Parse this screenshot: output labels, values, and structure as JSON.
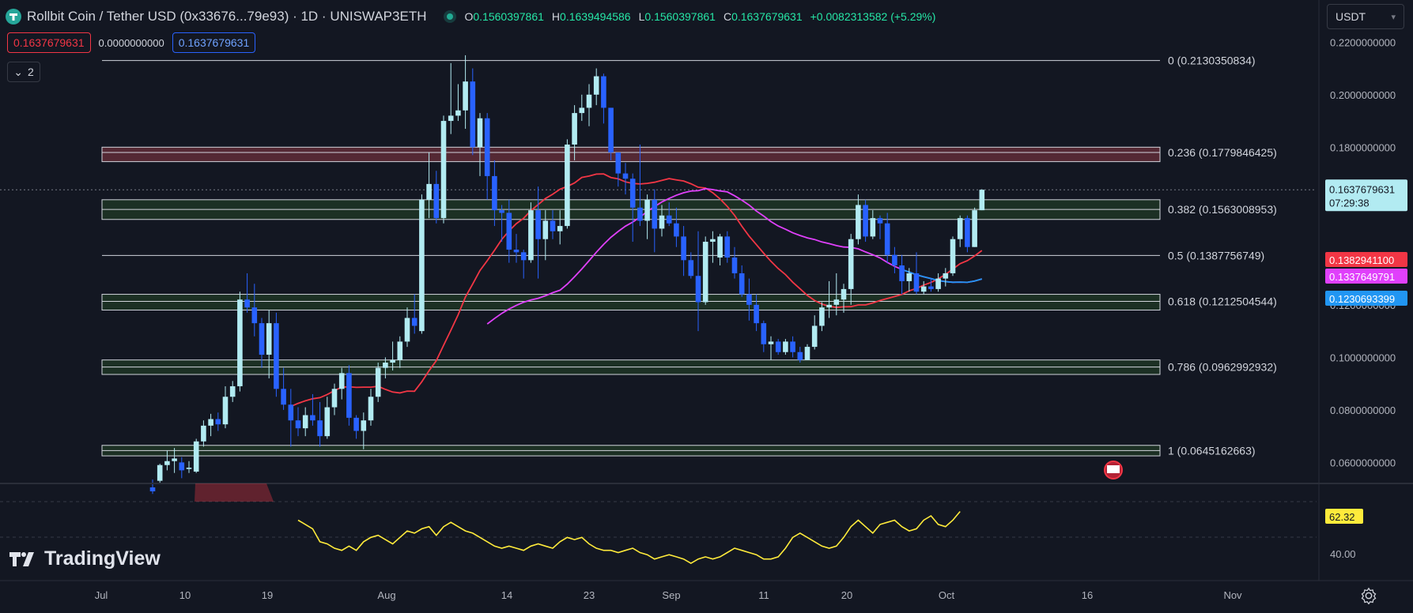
{
  "header": {
    "symbol_title": "Rollbit Coin / Tether USD (0x33676...79e93) · 1D · UNISWAP3ETH",
    "ohlc": [
      {
        "key": "O",
        "value": "0.1560397861"
      },
      {
        "key": "H",
        "value": "0.1639494586"
      },
      {
        "key": "L",
        "value": "0.1560397861"
      },
      {
        "key": "C",
        "value": "0.1637679631"
      },
      {
        "key": "",
        "value": "+0.0082313582 (+5.29%)"
      }
    ],
    "sell_price": "0.1637679631",
    "spread": "0.0000000000",
    "buy_price": "0.1637679631",
    "indicator_count": "2",
    "currency_select": "USDT"
  },
  "price_axis": {
    "ticks": [
      "0.2200000000",
      "0.2000000000",
      "0.1800000000",
      "0.1200000000",
      "0.1000000000",
      "0.0800000000",
      "0.0600000000"
    ],
    "last_price": "0.1637679631",
    "countdown": "07:29:38",
    "ma_labels": [
      {
        "value": "0.1382941100",
        "color": "#f23645"
      },
      {
        "value": "0.1337649791",
        "color": "#e040fb"
      },
      {
        "value": "0.1230693399",
        "color": "#2196f3"
      }
    ]
  },
  "fib_levels": [
    {
      "label": "0 (0.2130350834)"
    },
    {
      "label": "0.236 (0.1779846425)"
    },
    {
      "label": "0.382 (0.1563008953)"
    },
    {
      "label": "0.5 (0.1387756749)"
    },
    {
      "label": "0.618 (0.1212504544)"
    },
    {
      "label": "0.786 (0.0962992932)"
    },
    {
      "label": "1 (0.0645162663)"
    }
  ],
  "rsi": {
    "value_label": "62.32",
    "tick": "40.00"
  },
  "time_axis": [
    "Jul",
    "10",
    "19",
    "Aug",
    "14",
    "23",
    "Sep",
    "11",
    "20",
    "Oct",
    "16",
    "Nov"
  ],
  "branding": {
    "name": "TradingView"
  },
  "colors": {
    "background": "#131722",
    "up": "#b2ebf2",
    "down": "#2962ff",
    "ma_fast": "#f23645",
    "ma_mid": "#e040fb",
    "ma_slow": "#2196f3",
    "rsi": "#ffeb3b",
    "grid": "#2a2e39"
  },
  "chart_data": {
    "type": "candlestick",
    "series_note": "",
    "candles": [
      {
        "o": 0.0505,
        "h": 0.0535,
        "l": 0.048,
        "c": 0.049
      },
      {
        "o": 0.053,
        "h": 0.0595,
        "l": 0.052,
        "c": 0.059
      },
      {
        "o": 0.059,
        "h": 0.0645,
        "l": 0.057,
        "c": 0.0605
      },
      {
        "o": 0.0605,
        "h": 0.0655,
        "l": 0.056,
        "c": 0.0615
      },
      {
        "o": 0.06,
        "h": 0.062,
        "l": 0.054,
        "c": 0.057
      },
      {
        "o": 0.0575,
        "h": 0.0605,
        "l": 0.056,
        "c": 0.058
      },
      {
        "o": 0.0565,
        "h": 0.069,
        "l": 0.056,
        "c": 0.068
      },
      {
        "o": 0.068,
        "h": 0.076,
        "l": 0.066,
        "c": 0.074
      },
      {
        "o": 0.074,
        "h": 0.0785,
        "l": 0.07,
        "c": 0.0765
      },
      {
        "o": 0.0765,
        "h": 0.079,
        "l": 0.072,
        "c": 0.0745
      },
      {
        "o": 0.0745,
        "h": 0.089,
        "l": 0.073,
        "c": 0.085
      },
      {
        "o": 0.085,
        "h": 0.091,
        "l": 0.083,
        "c": 0.089
      },
      {
        "o": 0.089,
        "h": 0.125,
        "l": 0.087,
        "c": 0.122
      },
      {
        "o": 0.122,
        "h": 0.132,
        "l": 0.117,
        "c": 0.119
      },
      {
        "o": 0.119,
        "h": 0.128,
        "l": 0.108,
        "c": 0.113
      },
      {
        "o": 0.113,
        "h": 0.115,
        "l": 0.096,
        "c": 0.101
      },
      {
        "o": 0.101,
        "h": 0.118,
        "l": 0.092,
        "c": 0.113
      },
      {
        "o": 0.113,
        "h": 0.117,
        "l": 0.085,
        "c": 0.088
      },
      {
        "o": 0.088,
        "h": 0.096,
        "l": 0.08,
        "c": 0.082
      },
      {
        "o": 0.082,
        "h": 0.088,
        "l": 0.066,
        "c": 0.076
      },
      {
        "o": 0.076,
        "h": 0.081,
        "l": 0.07,
        "c": 0.073
      },
      {
        "o": 0.073,
        "h": 0.081,
        "l": 0.07,
        "c": 0.078
      },
      {
        "o": 0.078,
        "h": 0.086,
        "l": 0.074,
        "c": 0.076
      },
      {
        "o": 0.076,
        "h": 0.083,
        "l": 0.066,
        "c": 0.07
      },
      {
        "o": 0.07,
        "h": 0.085,
        "l": 0.069,
        "c": 0.081
      },
      {
        "o": 0.081,
        "h": 0.09,
        "l": 0.078,
        "c": 0.088
      },
      {
        "o": 0.088,
        "h": 0.096,
        "l": 0.084,
        "c": 0.094
      },
      {
        "o": 0.094,
        "h": 0.097,
        "l": 0.074,
        "c": 0.077
      },
      {
        "o": 0.077,
        "h": 0.078,
        "l": 0.069,
        "c": 0.072
      },
      {
        "o": 0.072,
        "h": 0.079,
        "l": 0.065,
        "c": 0.076
      },
      {
        "o": 0.076,
        "h": 0.088,
        "l": 0.074,
        "c": 0.085
      },
      {
        "o": 0.085,
        "h": 0.098,
        "l": 0.083,
        "c": 0.096
      },
      {
        "o": 0.096,
        "h": 0.1,
        "l": 0.092,
        "c": 0.098
      },
      {
        "o": 0.098,
        "h": 0.106,
        "l": 0.095,
        "c": 0.099
      },
      {
        "o": 0.099,
        "h": 0.108,
        "l": 0.096,
        "c": 0.106
      },
      {
        "o": 0.106,
        "h": 0.119,
        "l": 0.104,
        "c": 0.115
      },
      {
        "o": 0.115,
        "h": 0.124,
        "l": 0.109,
        "c": 0.112
      },
      {
        "o": 0.11,
        "h": 0.162,
        "l": 0.109,
        "c": 0.16
      },
      {
        "o": 0.16,
        "h": 0.178,
        "l": 0.153,
        "c": 0.166
      },
      {
        "o": 0.166,
        "h": 0.171,
        "l": 0.151,
        "c": 0.153
      },
      {
        "o": 0.153,
        "h": 0.192,
        "l": 0.151,
        "c": 0.19
      },
      {
        "o": 0.19,
        "h": 0.212,
        "l": 0.185,
        "c": 0.192
      },
      {
        "o": 0.192,
        "h": 0.204,
        "l": 0.19,
        "c": 0.194
      },
      {
        "o": 0.194,
        "h": 0.215,
        "l": 0.187,
        "c": 0.205
      },
      {
        "o": 0.205,
        "h": 0.21,
        "l": 0.177,
        "c": 0.18
      },
      {
        "o": 0.18,
        "h": 0.193,
        "l": 0.169,
        "c": 0.191
      },
      {
        "o": 0.191,
        "h": 0.193,
        "l": 0.16,
        "c": 0.169
      },
      {
        "o": 0.169,
        "h": 0.175,
        "l": 0.15,
        "c": 0.156
      },
      {
        "o": 0.156,
        "h": 0.158,
        "l": 0.144,
        "c": 0.155
      },
      {
        "o": 0.155,
        "h": 0.16,
        "l": 0.136,
        "c": 0.141
      },
      {
        "o": 0.141,
        "h": 0.147,
        "l": 0.136,
        "c": 0.14
      },
      {
        "o": 0.14,
        "h": 0.141,
        "l": 0.13,
        "c": 0.137
      },
      {
        "o": 0.137,
        "h": 0.159,
        "l": 0.136,
        "c": 0.156
      },
      {
        "o": 0.156,
        "h": 0.165,
        "l": 0.13,
        "c": 0.145
      },
      {
        "o": 0.145,
        "h": 0.156,
        "l": 0.137,
        "c": 0.152
      },
      {
        "o": 0.152,
        "h": 0.156,
        "l": 0.145,
        "c": 0.148
      },
      {
        "o": 0.148,
        "h": 0.156,
        "l": 0.143,
        "c": 0.15
      },
      {
        "o": 0.15,
        "h": 0.183,
        "l": 0.149,
        "c": 0.181
      },
      {
        "o": 0.181,
        "h": 0.196,
        "l": 0.175,
        "c": 0.193
      },
      {
        "o": 0.193,
        "h": 0.2,
        "l": 0.19,
        "c": 0.195
      },
      {
        "o": 0.195,
        "h": 0.204,
        "l": 0.188,
        "c": 0.2
      },
      {
        "o": 0.2,
        "h": 0.21,
        "l": 0.196,
        "c": 0.207
      },
      {
        "o": 0.207,
        "h": 0.208,
        "l": 0.189,
        "c": 0.195
      },
      {
        "o": 0.195,
        "h": 0.195,
        "l": 0.175,
        "c": 0.178
      },
      {
        "o": 0.178,
        "h": 0.178,
        "l": 0.165,
        "c": 0.17
      },
      {
        "o": 0.17,
        "h": 0.174,
        "l": 0.162,
        "c": 0.168
      },
      {
        "o": 0.168,
        "h": 0.17,
        "l": 0.144,
        "c": 0.157
      },
      {
        "o": 0.157,
        "h": 0.181,
        "l": 0.15,
        "c": 0.152
      },
      {
        "o": 0.152,
        "h": 0.162,
        "l": 0.145,
        "c": 0.16
      },
      {
        "o": 0.16,
        "h": 0.164,
        "l": 0.14,
        "c": 0.149
      },
      {
        "o": 0.149,
        "h": 0.158,
        "l": 0.146,
        "c": 0.154
      },
      {
        "o": 0.154,
        "h": 0.159,
        "l": 0.15,
        "c": 0.151
      },
      {
        "o": 0.151,
        "h": 0.157,
        "l": 0.142,
        "c": 0.146
      },
      {
        "o": 0.146,
        "h": 0.15,
        "l": 0.131,
        "c": 0.137
      },
      {
        "o": 0.137,
        "h": 0.14,
        "l": 0.13,
        "c": 0.131
      },
      {
        "o": 0.131,
        "h": 0.148,
        "l": 0.11,
        "c": 0.121
      },
      {
        "o": 0.121,
        "h": 0.146,
        "l": 0.12,
        "c": 0.144
      },
      {
        "o": 0.144,
        "h": 0.148,
        "l": 0.136,
        "c": 0.145
      },
      {
        "o": 0.138,
        "h": 0.147,
        "l": 0.135,
        "c": 0.146
      },
      {
        "o": 0.146,
        "h": 0.148,
        "l": 0.136,
        "c": 0.138
      },
      {
        "o": 0.138,
        "h": 0.142,
        "l": 0.13,
        "c": 0.132
      },
      {
        "o": 0.132,
        "h": 0.135,
        "l": 0.123,
        "c": 0.124
      },
      {
        "o": 0.124,
        "h": 0.13,
        "l": 0.114,
        "c": 0.12
      },
      {
        "o": 0.12,
        "h": 0.124,
        "l": 0.11,
        "c": 0.113
      },
      {
        "o": 0.113,
        "h": 0.114,
        "l": 0.102,
        "c": 0.105
      },
      {
        "o": 0.105,
        "h": 0.108,
        "l": 0.099,
        "c": 0.106
      },
      {
        "o": 0.106,
        "h": 0.107,
        "l": 0.101,
        "c": 0.102
      },
      {
        "o": 0.102,
        "h": 0.107,
        "l": 0.101,
        "c": 0.106
      },
      {
        "o": 0.106,
        "h": 0.108,
        "l": 0.1,
        "c": 0.102
      },
      {
        "o": 0.102,
        "h": 0.104,
        "l": 0.098,
        "c": 0.099
      },
      {
        "o": 0.099,
        "h": 0.105,
        "l": 0.099,
        "c": 0.104
      },
      {
        "o": 0.104,
        "h": 0.116,
        "l": 0.103,
        "c": 0.112
      },
      {
        "o": 0.112,
        "h": 0.121,
        "l": 0.11,
        "c": 0.119
      },
      {
        "o": 0.119,
        "h": 0.129,
        "l": 0.115,
        "c": 0.12
      },
      {
        "o": 0.12,
        "h": 0.132,
        "l": 0.116,
        "c": 0.122
      },
      {
        "o": 0.122,
        "h": 0.128,
        "l": 0.117,
        "c": 0.126
      },
      {
        "o": 0.126,
        "h": 0.147,
        "l": 0.12,
        "c": 0.145
      },
      {
        "o": 0.145,
        "h": 0.162,
        "l": 0.143,
        "c": 0.158
      },
      {
        "o": 0.158,
        "h": 0.16,
        "l": 0.144,
        "c": 0.146
      },
      {
        "o": 0.146,
        "h": 0.156,
        "l": 0.145,
        "c": 0.153
      },
      {
        "o": 0.153,
        "h": 0.154,
        "l": 0.145,
        "c": 0.151
      },
      {
        "o": 0.151,
        "h": 0.155,
        "l": 0.136,
        "c": 0.139
      },
      {
        "o": 0.139,
        "h": 0.142,
        "l": 0.132,
        "c": 0.135
      },
      {
        "o": 0.135,
        "h": 0.139,
        "l": 0.124,
        "c": 0.129
      },
      {
        "o": 0.129,
        "h": 0.134,
        "l": 0.125,
        "c": 0.132
      },
      {
        "o": 0.132,
        "h": 0.14,
        "l": 0.124,
        "c": 0.125
      },
      {
        "o": 0.125,
        "h": 0.129,
        "l": 0.124,
        "c": 0.127
      },
      {
        "o": 0.127,
        "h": 0.13,
        "l": 0.125,
        "c": 0.126
      },
      {
        "o": 0.126,
        "h": 0.132,
        "l": 0.125,
        "c": 0.13
      },
      {
        "o": 0.13,
        "h": 0.134,
        "l": 0.127,
        "c": 0.132
      },
      {
        "o": 0.132,
        "h": 0.146,
        "l": 0.131,
        "c": 0.145
      },
      {
        "o": 0.145,
        "h": 0.154,
        "l": 0.142,
        "c": 0.153
      },
      {
        "o": 0.153,
        "h": 0.154,
        "l": 0.14,
        "c": 0.142
      },
      {
        "o": 0.142,
        "h": 0.157,
        "l": 0.142,
        "c": 0.156
      },
      {
        "o": 0.156,
        "h": 0.164,
        "l": 0.156,
        "c": 0.1638
      }
    ],
    "moving_averages": [
      {
        "color": "#f23645",
        "values_start": 10,
        "values": []
      },
      {
        "color": "#e040fb",
        "values_start": 40,
        "values": []
      },
      {
        "color": "#2196f3",
        "values_start": 100,
        "values": []
      }
    ],
    "y_range": [
      0.052,
      0.224
    ],
    "rsi_values": [
      58,
      56,
      54,
      48,
      47,
      45,
      44,
      46,
      44,
      48,
      50,
      51,
      49,
      47,
      50,
      53,
      52,
      54,
      55,
      51,
      55,
      57,
      55,
      53,
      52,
      50,
      48,
      46,
      45,
      46,
      45,
      44,
      46,
      47,
      46,
      45,
      48,
      50,
      49,
      50,
      47,
      45,
      44,
      44,
      43,
      44,
      45,
      43,
      42,
      40,
      41,
      42,
      41,
      40,
      38,
      40,
      41,
      40,
      41,
      43,
      45,
      44,
      43,
      42,
      40,
      40,
      41,
      45,
      50,
      52,
      50,
      48,
      46,
      45,
      46,
      50,
      55,
      58,
      55,
      52,
      56,
      57,
      58,
      55,
      53,
      54,
      58,
      60,
      56,
      55,
      58,
      62
    ]
  }
}
